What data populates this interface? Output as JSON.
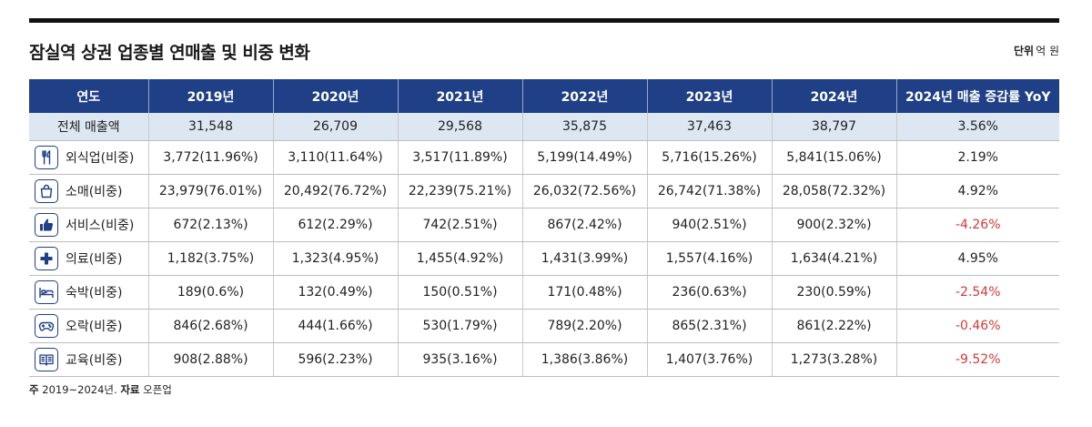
{
  "title": "잠실역 상권 업종별 연매출 및 비중 변화",
  "unit": {
    "label": "단위",
    "value": "억 원"
  },
  "table": {
    "headers": [
      "연도",
      "2019년",
      "2020년",
      "2021년",
      "2022년",
      "2023년",
      "2024년",
      "2024년 매출 증감률 YoY"
    ],
    "total": {
      "label": "전체 매출액",
      "values": [
        "31,548",
        "26,709",
        "29,568",
        "35,875",
        "37,463",
        "38,797",
        "3.56%"
      ]
    },
    "rows": [
      {
        "icon": "utensils-icon",
        "label": "외식업(비중)",
        "values": [
          "3,772(11.96%)",
          "3,110(11.64%)",
          "3,517(11.89%)",
          "5,199(14.49%)",
          "5,716(15.26%)",
          "5,841(15.06%)",
          "2.19%"
        ],
        "negative": false
      },
      {
        "icon": "shopping-bag-icon",
        "label": "소매(비중)",
        "values": [
          "23,979(76.01%)",
          "20,492(76.72%)",
          "22,239(75.21%)",
          "26,032(72.56%)",
          "26,742(71.38%)",
          "28,058(72.32%)",
          "4.92%"
        ],
        "negative": false
      },
      {
        "icon": "thumbs-up-icon",
        "label": "서비스(비중)",
        "values": [
          "672(2.13%)",
          "612(2.29%)",
          "742(2.51%)",
          "867(2.42%)",
          "940(2.51%)",
          "900(2.32%)",
          "-4.26%"
        ],
        "negative": true
      },
      {
        "icon": "medical-cross-icon",
        "label": "의료(비중)",
        "values": [
          "1,182(3.75%)",
          "1,323(4.95%)",
          "1,455(4.92%)",
          "1,431(3.99%)",
          "1,557(4.16%)",
          "1,634(4.21%)",
          "4.95%"
        ],
        "negative": false
      },
      {
        "icon": "bed-icon",
        "label": "숙박(비중)",
        "values": [
          "189(0.6%)",
          "132(0.49%)",
          "150(0.51%)",
          "171(0.48%)",
          "236(0.63%)",
          "230(0.59%)",
          "-2.54%"
        ],
        "negative": true
      },
      {
        "icon": "gamepad-icon",
        "label": "오락(비중)",
        "values": [
          "846(2.68%)",
          "444(1.66%)",
          "530(1.79%)",
          "789(2.20%)",
          "865(2.31%)",
          "861(2.22%)",
          "-0.46%"
        ],
        "negative": true
      },
      {
        "icon": "book-icon",
        "label": "교육(비중)",
        "values": [
          "908(2.88%)",
          "596(2.23%)",
          "935(3.16%)",
          "1,386(3.86%)",
          "1,407(3.76%)",
          "1,273(3.28%)",
          "-9.52%"
        ],
        "negative": true
      }
    ]
  },
  "footer": {
    "note_label": "주",
    "note": "2019~2024년.",
    "source_label": "자료",
    "source": "오픈업"
  },
  "colors": {
    "header_bg": "#1f3f86",
    "total_row_bg": "#dde7f2",
    "negative": "#d23a3a"
  }
}
